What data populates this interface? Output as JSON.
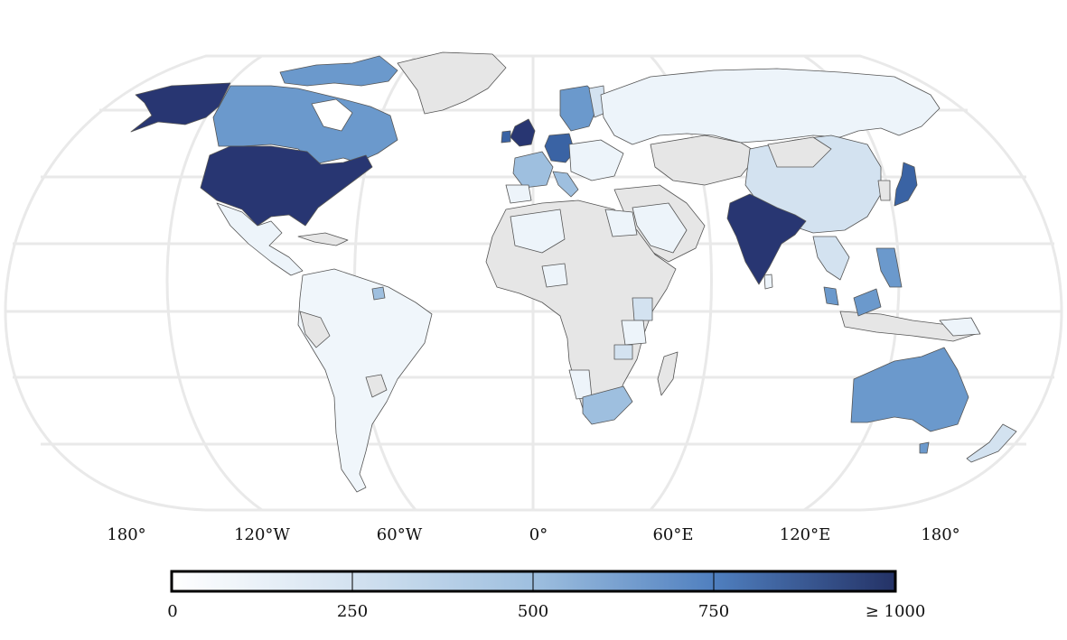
{
  "map": {
    "projection": "Eckert IV-like pseudo-cylindrical",
    "graticule": true,
    "longitude_labels": [
      "180°",
      "120°W",
      "60°W",
      "0°",
      "60°E",
      "120°E",
      "180°"
    ],
    "colors": {
      "no_data": "#e6e6e6",
      "border": "#555555",
      "graticule": "#e9e9e9",
      "scale": [
        "#ffffff",
        "#d3e2f0",
        "#9ebfdf",
        "#6b99cc",
        "#3a63a4",
        "#283672"
      ]
    },
    "regions": [
      {
        "name": "Alaska",
        "value": 1000
      },
      {
        "name": "USA",
        "value": 1000
      },
      {
        "name": "Canada",
        "value": 600
      },
      {
        "name": "Greenland",
        "value": null
      },
      {
        "name": "Mexico",
        "value": 80
      },
      {
        "name": "South America",
        "value": 60
      },
      {
        "name": "UK",
        "value": 900
      },
      {
        "name": "Germany",
        "value": 850
      },
      {
        "name": "France",
        "value": 450
      },
      {
        "name": "Scandinavia",
        "value": 550
      },
      {
        "name": "Russia",
        "value": 60
      },
      {
        "name": "China",
        "value": 150
      },
      {
        "name": "India",
        "value": 900
      },
      {
        "name": "Japan",
        "value": 800
      },
      {
        "name": "Australia",
        "value": 600
      },
      {
        "name": "South Africa",
        "value": 450
      },
      {
        "name": "New Zealand",
        "value": 200
      },
      {
        "name": "Africa (other)",
        "value": null
      },
      {
        "name": "Middle East",
        "value": null
      }
    ]
  },
  "colorbar": {
    "ticks": [
      "0",
      "250",
      "500",
      "750",
      "≥ 1000"
    ],
    "range": [
      0,
      1000
    ]
  }
}
